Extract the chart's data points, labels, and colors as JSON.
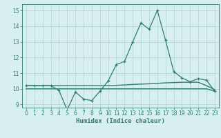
{
  "xlabel": "Humidex (Indice chaleur)",
  "x": [
    0,
    1,
    2,
    3,
    4,
    5,
    6,
    7,
    8,
    9,
    10,
    11,
    12,
    13,
    14,
    15,
    16,
    17,
    18,
    19,
    20,
    21,
    22,
    23
  ],
  "y_main": [
    10.2,
    10.2,
    10.2,
    10.2,
    9.9,
    8.65,
    9.8,
    9.35,
    9.25,
    9.85,
    10.5,
    11.55,
    11.75,
    13.0,
    14.2,
    13.8,
    15.0,
    13.1,
    11.1,
    10.7,
    10.45,
    10.65,
    10.55,
    9.85
  ],
  "y_flat1": [
    10.2,
    10.2,
    10.2,
    10.2,
    10.2,
    10.2,
    10.2,
    10.2,
    10.2,
    10.2,
    10.2,
    10.22,
    10.25,
    10.28,
    10.3,
    10.32,
    10.35,
    10.38,
    10.4,
    10.42,
    10.42,
    10.42,
    10.2,
    9.95
  ],
  "y_flat2": [
    10.0,
    10.0,
    10.0,
    10.0,
    10.0,
    10.0,
    10.0,
    10.0,
    10.0,
    10.0,
    10.0,
    10.0,
    10.0,
    10.0,
    10.0,
    10.0,
    10.0,
    10.0,
    10.0,
    10.0,
    10.0,
    10.0,
    10.0,
    9.85
  ],
  "line_color": "#2e7d6e",
  "bg_color": "#d8efef",
  "grid_color": "#aed4d4",
  "ylim": [
    8.8,
    15.4
  ],
  "xlim": [
    -0.5,
    23.5
  ],
  "yticks": [
    9,
    10,
    11,
    12,
    13,
    14,
    15
  ],
  "xticks": [
    0,
    1,
    2,
    3,
    4,
    5,
    6,
    7,
    8,
    9,
    10,
    11,
    12,
    13,
    14,
    15,
    16,
    17,
    18,
    19,
    20,
    21,
    22,
    23
  ],
  "tick_fontsize": 5.5,
  "xlabel_fontsize": 6.5
}
